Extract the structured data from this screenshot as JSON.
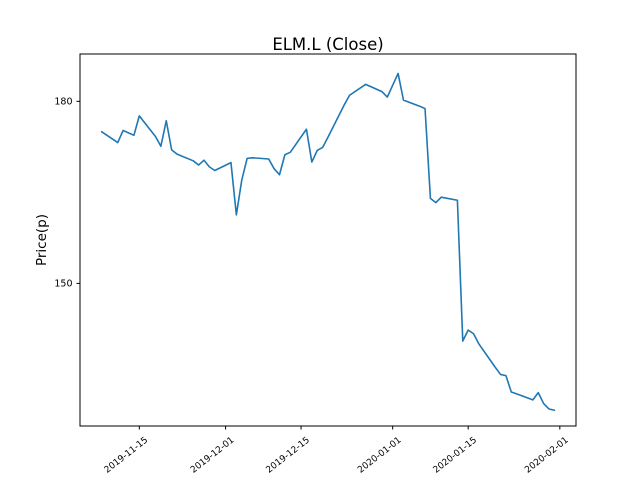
{
  "figure": {
    "title": "ELM.L (Close)",
    "background": "#ffffff"
  },
  "chart_data": {
    "type": "line",
    "title": "ELM.L (Close)",
    "xlabel": "",
    "ylabel": "Price(p)",
    "grid": false,
    "legend": "none",
    "line_color": "#1f77b4",
    "xlim": [
      "2019-11-04",
      "2020-02-04"
    ],
    "ylim": [
      126.5,
      187.8
    ],
    "x_ticks": [
      {
        "label": "2019-11-15",
        "date": "2019-11-15"
      },
      {
        "label": "2019-12-01",
        "date": "2019-12-01"
      },
      {
        "label": "2019-12-15",
        "date": "2019-12-15"
      },
      {
        "label": "2020-01-01",
        "date": "2020-01-01"
      },
      {
        "label": "2020-01-15",
        "date": "2020-01-15"
      },
      {
        "label": "2020-02-01",
        "date": "2020-02-01"
      }
    ],
    "y_ticks": [
      {
        "label": "150",
        "value": 150
      },
      {
        "label": "180",
        "value": 180
      }
    ],
    "series": [
      {
        "name": "Close",
        "x": [
          "2019-11-08",
          "2019-11-11",
          "2019-11-12",
          "2019-11-13",
          "2019-11-14",
          "2019-11-15",
          "2019-11-18",
          "2019-11-19",
          "2019-11-20",
          "2019-11-21",
          "2019-11-22",
          "2019-11-25",
          "2019-11-26",
          "2019-11-27",
          "2019-11-28",
          "2019-11-29",
          "2019-12-02",
          "2019-12-03",
          "2019-12-04",
          "2019-12-05",
          "2019-12-06",
          "2019-12-09",
          "2019-12-10",
          "2019-12-11",
          "2019-12-12",
          "2019-12-13",
          "2019-12-16",
          "2019-12-17",
          "2019-12-18",
          "2019-12-19",
          "2019-12-20",
          "2019-12-23",
          "2019-12-24",
          "2019-12-27",
          "2019-12-30",
          "2019-12-31",
          "2020-01-02",
          "2020-01-03",
          "2020-01-06",
          "2020-01-07",
          "2020-01-08",
          "2020-01-09",
          "2020-01-10",
          "2020-01-13",
          "2020-01-14",
          "2020-01-15",
          "2020-01-16",
          "2020-01-17",
          "2020-01-20",
          "2020-01-21",
          "2020-01-22",
          "2020-01-23",
          "2020-01-24",
          "2020-01-27",
          "2020-01-28",
          "2020-01-29",
          "2020-01-30",
          "2020-01-31"
        ],
        "y": [
          175.0,
          173.2,
          175.2,
          174.8,
          174.4,
          177.6,
          174.2,
          172.6,
          176.8,
          172.0,
          171.3,
          170.2,
          169.5,
          170.3,
          169.2,
          168.6,
          169.9,
          161.3,
          167.0,
          170.6,
          170.7,
          170.5,
          168.9,
          167.9,
          171.2,
          171.6,
          175.4,
          170.0,
          171.9,
          172.4,
          174.1,
          179.4,
          181.0,
          182.8,
          181.6,
          180.7,
          184.6,
          180.2,
          179.2,
          178.8,
          164.0,
          163.3,
          164.2,
          163.7,
          140.5,
          142.3,
          141.7,
          140.0,
          136.2,
          135.0,
          134.8,
          132.1,
          131.8,
          130.8,
          132.0,
          130.2,
          129.3,
          129.1
        ]
      }
    ]
  }
}
